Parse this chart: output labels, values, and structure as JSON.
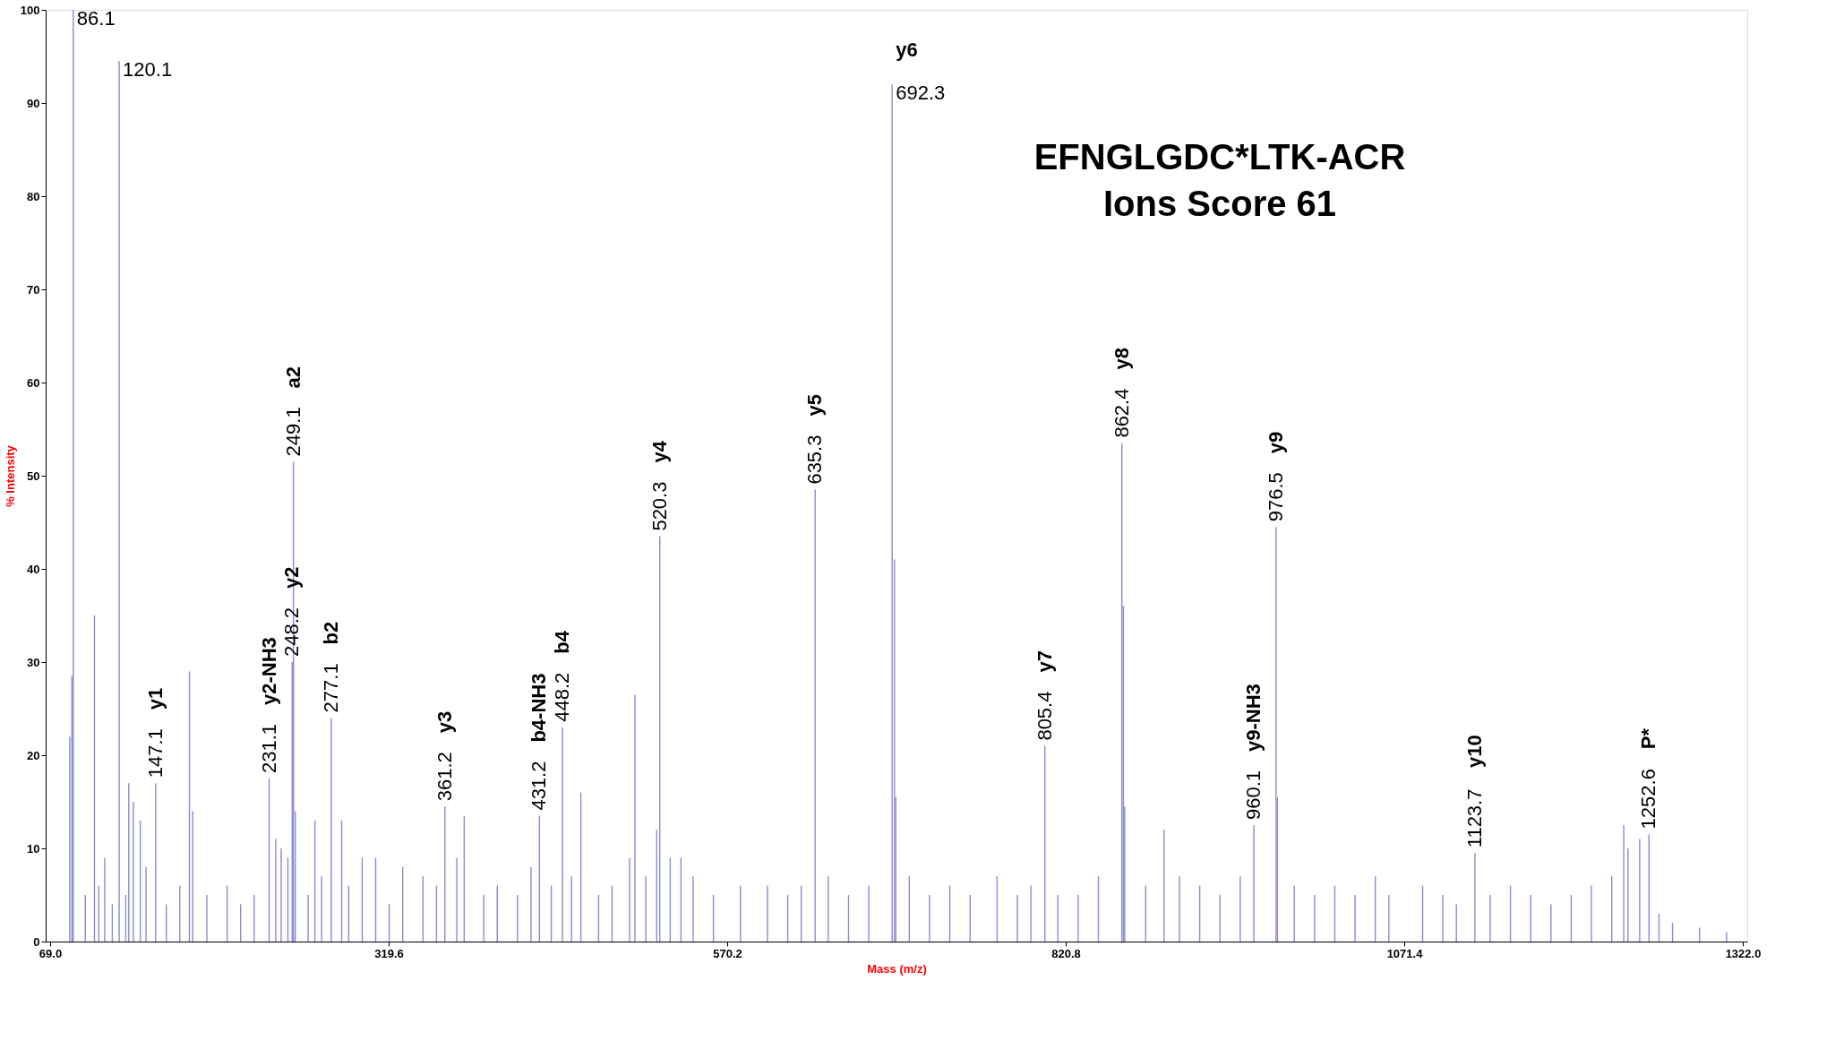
{
  "chart_data": {
    "type": "bar",
    "xlabel": "Mass (m/z)",
    "ylabel": "% Intensity",
    "x": [
      83.5,
      85.1,
      86.1,
      95,
      101.8,
      105,
      109.4,
      115,
      120.1,
      125,
      127.2,
      130.6,
      135.7,
      140,
      147.1,
      155,
      165,
      172.1,
      174.6,
      185,
      200,
      210,
      220,
      231.1,
      236,
      240,
      245,
      248.2,
      249.1,
      250.5,
      260,
      265,
      270,
      277.1,
      284.8,
      290,
      300,
      310,
      320,
      330,
      345,
      355,
      361.2,
      370,
      375.5,
      390,
      400,
      415,
      425,
      431.2,
      440,
      448.2,
      455,
      461.9,
      475,
      485,
      498,
      501.9,
      510,
      518,
      520.3,
      528,
      536,
      545,
      560,
      580,
      600,
      615,
      625,
      635.3,
      645,
      660,
      675,
      692.3,
      694,
      695,
      705,
      720,
      735,
      750,
      770,
      785,
      795,
      805.4,
      815,
      830,
      845,
      862.4,
      863.5,
      864.5,
      880,
      893.6,
      905,
      920,
      935,
      950,
      960.1,
      976.5,
      977.5,
      990,
      1005,
      1020,
      1035,
      1050,
      1060,
      1085,
      1100,
      1110,
      1123.7,
      1135,
      1150,
      1165,
      1180,
      1195,
      1210,
      1225,
      1233.9,
      1237,
      1245.7,
      1252.6,
      1260,
      1270,
      1290,
      1310
    ],
    "values": [
      22,
      28.5,
      100,
      5,
      35,
      6,
      9,
      4,
      94.5,
      5,
      17,
      15,
      13,
      8,
      17,
      4,
      6,
      29,
      14,
      5,
      6,
      4,
      5,
      17.5,
      11,
      10,
      9,
      30,
      51.5,
      14,
      5,
      13,
      7,
      24,
      13,
      6,
      9,
      9,
      4,
      8,
      7,
      6,
      14.5,
      9,
      13.5,
      5,
      6,
      5,
      8,
      13.5,
      6,
      23,
      7,
      16,
      5,
      6,
      9,
      26.5,
      7,
      12,
      43.5,
      9,
      9,
      7,
      5,
      6,
      6,
      5,
      6,
      48.5,
      7,
      5,
      6,
      92,
      41,
      15.5,
      7,
      5,
      6,
      5,
      7,
      5,
      6,
      21,
      5,
      5,
      7,
      53.5,
      36,
      14.5,
      6,
      12,
      7,
      6,
      5,
      7,
      12.5,
      44.5,
      15.5,
      6,
      5,
      6,
      5,
      7,
      5,
      6,
      5,
      4,
      9.5,
      5,
      6,
      5,
      4,
      5,
      6,
      7,
      12.5,
      10,
      11,
      11.5,
      3,
      2,
      1.5,
      1
    ],
    "color": "#8a8ad6",
    "xlim": [
      69.0,
      1322.0
    ],
    "xticks": [
      {
        "value": 69.0,
        "label": "69.0"
      },
      {
        "value": 319.6,
        "label": "319.6"
      },
      {
        "value": 570.2,
        "label": "570.2"
      },
      {
        "value": 820.8,
        "label": "820.8"
      },
      {
        "value": 1071.4,
        "label": "1071.4"
      },
      {
        "value": 1322.0,
        "label": "1322.0"
      }
    ],
    "ylim": [
      0,
      100
    ],
    "yticks": [
      0,
      10,
      20,
      30,
      40,
      50,
      60,
      70,
      80,
      90,
      100
    ],
    "grid": false,
    "annotations": [
      "EFNGLGDC*LTK-ACR",
      "Ions Score 61",
      {
        "text": "86.1",
        "x": 86.1,
        "y": 100
      },
      {
        "text": "120.1",
        "x": 120.1,
        "y": 94.5
      },
      {
        "text": "147.1",
        "x": 147.1,
        "y": 17
      },
      "y1",
      {
        "text": "231.1",
        "x": 231.1,
        "y": 17.5
      },
      "y2-NH3",
      {
        "text": "249.1",
        "x": 249.1,
        "y": 51.5
      },
      "a2",
      {
        "text": "248.2",
        "x": 248.2,
        "y": 30
      },
      "y2",
      {
        "text": "277.1",
        "x": 277.1,
        "y": 24
      },
      "b2",
      {
        "text": "361.2",
        "x": 361.2,
        "y": 14.5
      },
      "y3",
      {
        "text": "431.2",
        "x": 431.2,
        "y": 13.5
      },
      "b4-NH3",
      {
        "text": "448.2",
        "x": 448.2,
        "y": 23
      },
      "b4",
      {
        "text": "520.3",
        "x": 520.3,
        "y": 43.5
      },
      "y4",
      {
        "text": "635.3",
        "x": 635.3,
        "y": 48.5
      },
      "y5",
      {
        "text": "692.3",
        "x": 692.3,
        "y": 92
      },
      "y6",
      {
        "text": "805.4",
        "x": 805.4,
        "y": 21
      },
      "y7",
      {
        "text": "862.4",
        "x": 862.4,
        "y": 53.5
      },
      "y8",
      {
        "text": "976.5",
        "x": 976.5,
        "y": 44.5
      },
      "y9",
      {
        "text": "960.1",
        "x": 960.1,
        "y": 12.5
      },
      "y9-NH3",
      {
        "text": "1123.7",
        "x": 1123.7,
        "y": 9.5
      },
      "y10",
      {
        "text": "1252.6",
        "x": 1252.6,
        "y": 11.5
      },
      "P*"
    ]
  }
}
